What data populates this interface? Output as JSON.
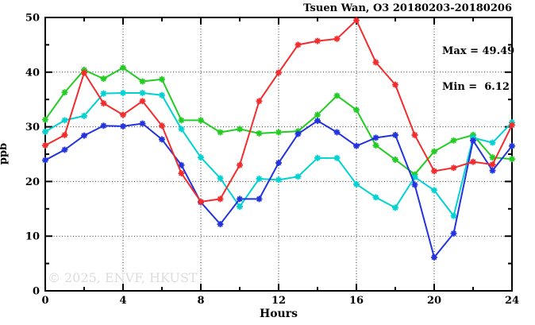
{
  "title": "Tsuen Wan, O3 20180203-20180206",
  "annotation": {
    "max_label": "Max = 49.49",
    "min_label": "Min =  6.12"
  },
  "watermark": "© 2025, ENVF, HKUST",
  "chart_data": {
    "type": "line",
    "title": "Tsuen Wan, O3 20180203-20180206",
    "xlabel": "Hours",
    "ylabel": "ppb",
    "xlim": [
      0,
      24
    ],
    "ylim": [
      0,
      50
    ],
    "x_major_ticks": [
      0,
      4,
      8,
      12,
      16,
      20,
      24
    ],
    "x_minor_step": 2,
    "y_major_ticks": [
      0,
      10,
      20,
      30,
      40,
      50
    ],
    "y_minor_step": 5,
    "grid": "dotted lines at interior major ticks, all four borders ticked",
    "legend_position": "none",
    "marker": "asterisk",
    "stats": {
      "max": 49.49,
      "min": 6.12
    },
    "x": [
      0,
      1,
      2,
      3,
      4,
      5,
      6,
      7,
      8,
      9,
      10,
      11,
      12,
      13,
      14,
      15,
      16,
      17,
      18,
      19,
      20,
      21,
      22,
      23,
      24
    ],
    "series": [
      {
        "name": "green",
        "color": "#22cc22",
        "values": [
          31.3,
          36.3,
          40.4,
          38.8,
          40.8,
          38.3,
          38.7,
          31.2,
          31.2,
          29.0,
          29.6,
          28.8,
          29.0,
          29.2,
          32.2,
          35.7,
          33.1,
          26.6,
          24.0,
          21.3,
          25.5,
          27.5,
          28.5,
          24.4,
          24.1
        ]
      },
      {
        "name": "cyan",
        "color": "#00d2d2",
        "values": [
          29.1,
          31.2,
          32.0,
          36.1,
          36.2,
          36.2,
          35.8,
          29.6,
          24.4,
          20.6,
          15.4,
          20.5,
          20.3,
          20.9,
          24.3,
          24.3,
          19.5,
          17.1,
          15.2,
          20.8,
          18.4,
          13.7,
          28.0,
          27.1,
          30.8
        ]
      },
      {
        "name": "blue",
        "color": "#2233dd",
        "values": [
          23.9,
          25.8,
          28.4,
          30.2,
          30.1,
          30.6,
          27.7,
          23.0,
          16.2,
          12.2,
          16.8,
          16.8,
          23.4,
          28.7,
          31.1,
          29.0,
          26.5,
          28.0,
          28.5,
          19.4,
          6.12,
          10.5,
          27.5,
          22.0,
          26.5
        ]
      },
      {
        "name": "red",
        "color": "#f22c2c",
        "values": [
          26.6,
          28.5,
          39.9,
          34.3,
          32.2,
          34.7,
          30.2,
          21.5,
          16.3,
          16.8,
          23.0,
          34.7,
          39.9,
          45.0,
          45.7,
          46.1,
          49.49,
          41.8,
          37.7,
          28.5,
          21.9,
          22.5,
          23.6,
          23.1,
          30.3
        ]
      }
    ]
  }
}
